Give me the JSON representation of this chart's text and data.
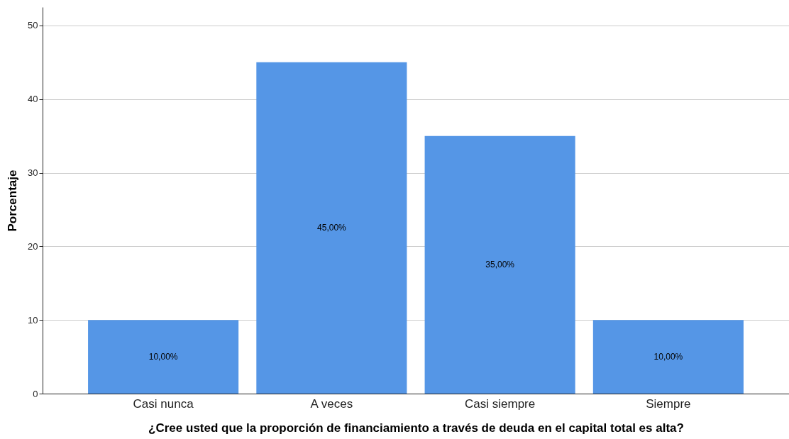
{
  "chart_data": {
    "type": "bar",
    "xlabel": "¿Cree usted que la proporción de financiamiento a través de deuda en el capital total es alta?",
    "ylabel": "Porcentaje",
    "categories": [
      "Casi nunca",
      "A veces",
      "Casi siempre",
      "Siempre"
    ],
    "values": [
      10,
      45,
      35,
      10
    ],
    "value_labels": [
      "10,00%",
      "45,00%",
      "35,00%",
      "10,00%"
    ],
    "color": "#5596e6",
    "ylim": [
      0,
      52.5
    ],
    "yticks": [
      0,
      10,
      20,
      30,
      40,
      50
    ],
    "grid": "y"
  }
}
